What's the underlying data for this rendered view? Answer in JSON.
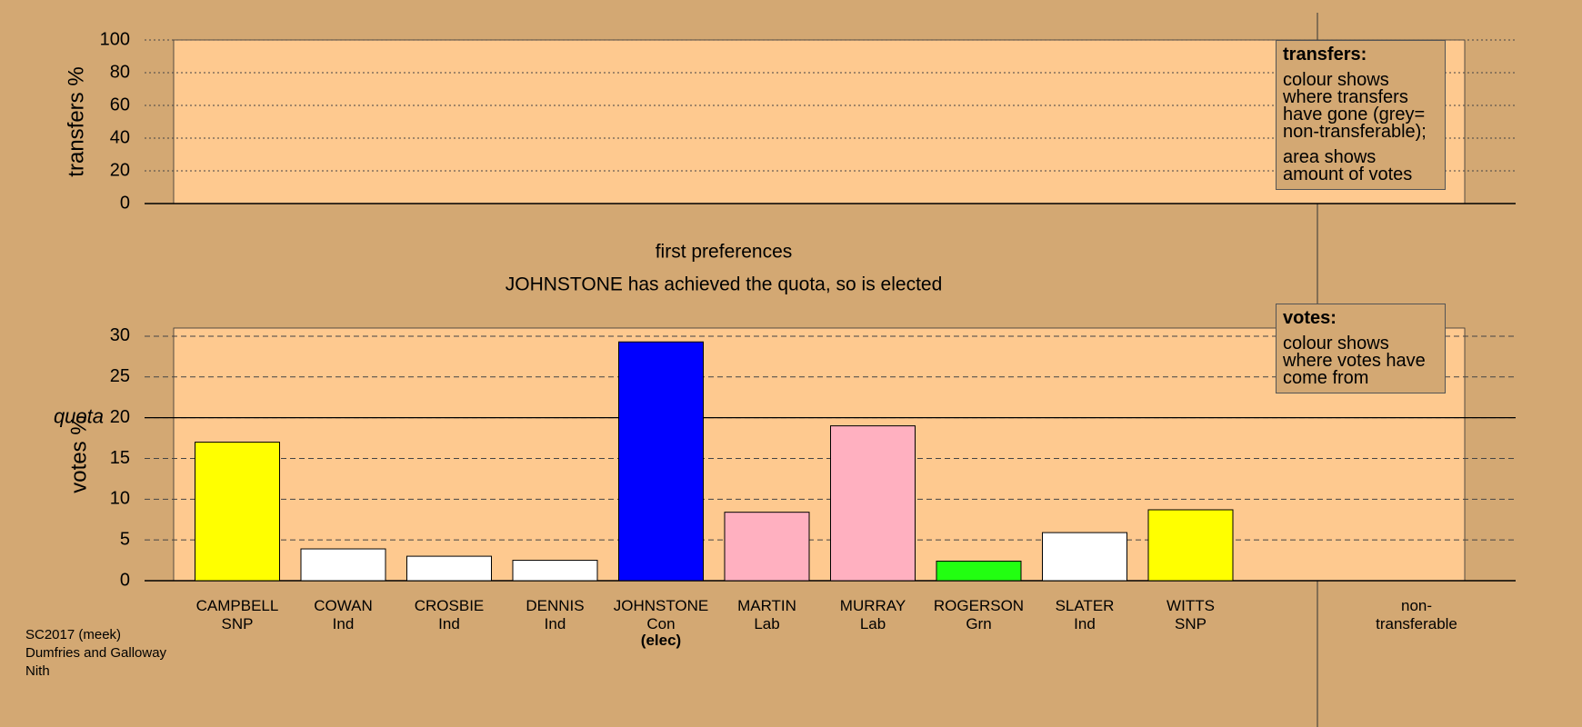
{
  "chart_data": [
    {
      "type": "bar",
      "y_label": "transfers %",
      "ylim": [
        0,
        100
      ],
      "yticks": [
        0,
        20,
        40,
        60,
        80,
        100
      ],
      "grid": "dotted",
      "legend": {
        "title": "transfers:",
        "lines": [
          "colour shows where transfers have gone (grey= non-transferable);",
          "area shows amount of votes"
        ]
      }
    },
    {
      "type": "bar",
      "title": "first preferences",
      "subtitle": "JOHNSTONE has achieved the quota, so is elected",
      "y_label": "votes %",
      "ylim": [
        0,
        31
      ],
      "yticks": [
        0,
        5,
        10,
        15,
        20,
        25,
        30
      ],
      "grid": "dashed",
      "quota": {
        "value": 20,
        "label": "quota"
      },
      "categories": [
        "CAMPBELL",
        "COWAN",
        "CROSBIE",
        "DENNIS",
        "JOHNSTONE",
        "MARTIN",
        "MURRAY",
        "ROGERSON",
        "SLATER",
        "WITTS",
        "non-transferable"
      ],
      "parties": [
        "SNP",
        "Ind",
        "Ind",
        "Ind",
        "Con",
        "Lab",
        "Lab",
        "Grn",
        "Ind",
        "SNP",
        null
      ],
      "notes": [
        null,
        null,
        null,
        null,
        "(elec)",
        null,
        null,
        null,
        null,
        null,
        null
      ],
      "values": [
        17.0,
        3.9,
        3.0,
        2.5,
        29.3,
        8.4,
        19.0,
        2.4,
        5.9,
        8.7,
        null
      ],
      "colors": [
        "#ffff00",
        "#ffffff",
        "#ffffff",
        "#ffffff",
        "#0000ff",
        "#ffb0c0",
        "#ffb0c0",
        "#22ff11",
        "#ffffff",
        "#ffff00",
        null
      ],
      "legend": {
        "title": "votes:",
        "lines": [
          "colour shows where votes have come from"
        ]
      }
    }
  ],
  "footer": [
    "SC2017 (meek)",
    "Dumfries and Galloway",
    "Nith"
  ]
}
